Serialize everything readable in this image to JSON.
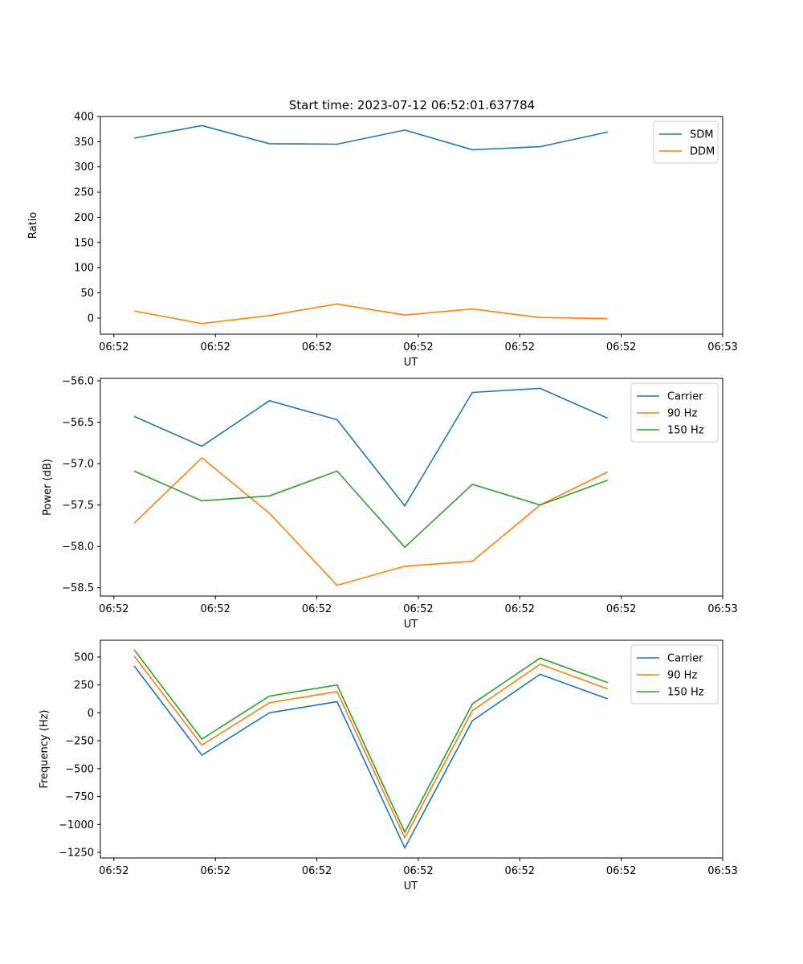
{
  "figure": {
    "title": "Start time: 2023-07-12 06:52:01.637784"
  },
  "chart_data": [
    {
      "type": "line",
      "xlabel": "UT",
      "ylabel": "Ratio",
      "x_tick_labels": [
        "06:52",
        "06:52",
        "06:52",
        "06:52",
        "06:52",
        "06:52",
        "06:53"
      ],
      "y_ticks": [
        0,
        50,
        100,
        150,
        200,
        250,
        300,
        350,
        400
      ],
      "ylim": [
        -32,
        400
      ],
      "legend_position": "top-right",
      "x": [
        1,
        2,
        3,
        4,
        5,
        6,
        7,
        8
      ],
      "series": [
        {
          "name": "SDM",
          "color": "#1f77b4",
          "values": [
            357,
            382,
            346,
            345,
            373,
            334,
            340,
            369
          ]
        },
        {
          "name": "DDM",
          "color": "#ff7f0e",
          "values": [
            14,
            -11,
            5,
            28,
            6,
            18,
            1,
            -1
          ]
        }
      ]
    },
    {
      "type": "line",
      "xlabel": "UT",
      "ylabel": "Power (dB)",
      "x_tick_labels": [
        "06:52",
        "06:52",
        "06:52",
        "06:52",
        "06:52",
        "06:52",
        "06:53"
      ],
      "y_ticks": [
        -58.5,
        -58.0,
        -57.5,
        -57.0,
        -56.5,
        -56.0
      ],
      "y_tick_labels": [
        "−58.5",
        "−58.0",
        "−57.5",
        "−57.0",
        "−56.5",
        "−56.0"
      ],
      "ylim": [
        -58.6,
        -55.97
      ],
      "legend_position": "top-right",
      "x": [
        1,
        2,
        3,
        4,
        5,
        6,
        7,
        8
      ],
      "series": [
        {
          "name": "Carrier",
          "color": "#1f77b4",
          "values": [
            -56.43,
            -56.79,
            -56.24,
            -56.47,
            -57.51,
            -56.14,
            -56.09,
            -56.45
          ]
        },
        {
          "name": "90 Hz",
          "color": "#ff7f0e",
          "values": [
            -57.72,
            -56.93,
            -57.6,
            -58.47,
            -58.24,
            -58.18,
            -57.5,
            -57.1
          ]
        },
        {
          "name": "150 Hz",
          "color": "#2ca02c",
          "values": [
            -57.09,
            -57.45,
            -57.39,
            -57.09,
            -58.01,
            -57.25,
            -57.5,
            -57.2
          ]
        }
      ]
    },
    {
      "type": "line",
      "xlabel": "UT",
      "ylabel": "Frequency (Hz)",
      "x_tick_labels": [
        "06:52",
        "06:52",
        "06:52",
        "06:52",
        "06:52",
        "06:52",
        "06:53"
      ],
      "y_ticks": [
        -1250,
        -1000,
        -750,
        -500,
        -250,
        0,
        250,
        500
      ],
      "y_tick_labels": [
        "−1250",
        "−1000",
        "−750",
        "−500",
        "−250",
        "0",
        "250",
        "500"
      ],
      "ylim": [
        -1300,
        650
      ],
      "legend_position": "top-right",
      "x": [
        1,
        2,
        3,
        4,
        5,
        6,
        7,
        8
      ],
      "series": [
        {
          "name": "Carrier",
          "color": "#1f77b4",
          "values": [
            420,
            -380,
            0,
            100,
            -1210,
            -70,
            345,
            125
          ]
        },
        {
          "name": "90 Hz",
          "color": "#ff7f0e",
          "values": [
            510,
            -290,
            90,
            190,
            -1120,
            20,
            435,
            215
          ]
        },
        {
          "name": "150 Hz",
          "color": "#2ca02c",
          "values": [
            565,
            -235,
            150,
            250,
            -1070,
            80,
            490,
            270
          ]
        }
      ]
    }
  ]
}
